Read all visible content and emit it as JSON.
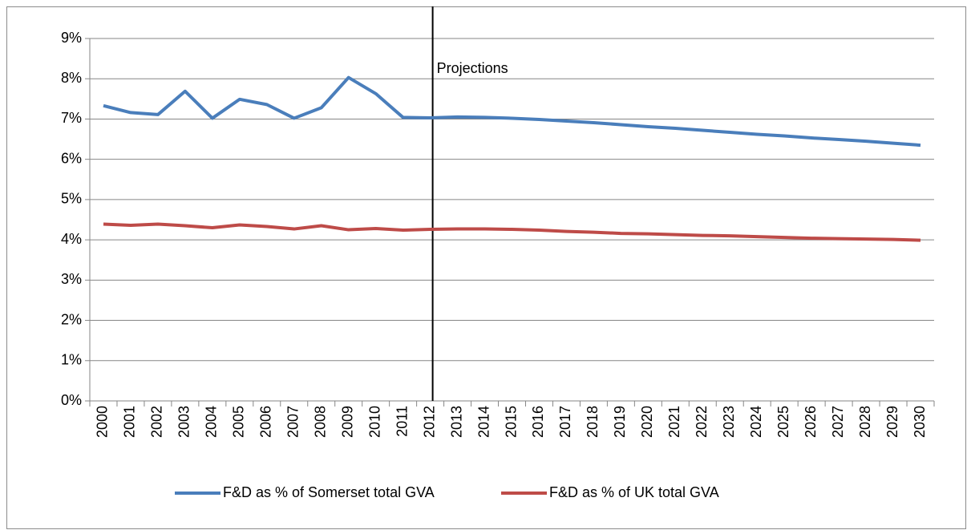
{
  "chart_data": {
    "type": "line",
    "categories": [
      "2000",
      "2001",
      "2002",
      "2003",
      "2004",
      "2005",
      "2006",
      "2007",
      "2008",
      "2009",
      "2010",
      "2011",
      "2012",
      "2013",
      "2014",
      "2015",
      "2016",
      "2017",
      "2018",
      "2019",
      "2020",
      "2021",
      "2022",
      "2023",
      "2024",
      "2025",
      "2026",
      "2027",
      "2028",
      "2029",
      "2030"
    ],
    "series": [
      {
        "name": "F&D as % of Somerset total GVA",
        "color": "#4a7ebb",
        "values": [
          7.33,
          7.16,
          7.11,
          7.69,
          7.02,
          7.49,
          7.36,
          7.02,
          7.28,
          8.03,
          7.63,
          7.04,
          7.03,
          7.05,
          7.04,
          7.02,
          6.99,
          6.95,
          6.91,
          6.86,
          6.81,
          6.77,
          6.72,
          6.67,
          6.62,
          6.58,
          6.53,
          6.49,
          6.45,
          6.4,
          6.35
        ]
      },
      {
        "name": "F&D as % of UK total GVA",
        "color": "#be4b48",
        "values": [
          4.39,
          4.36,
          4.39,
          4.35,
          4.3,
          4.37,
          4.33,
          4.27,
          4.35,
          4.25,
          4.28,
          4.24,
          4.26,
          4.27,
          4.27,
          4.26,
          4.24,
          4.21,
          4.19,
          4.16,
          4.15,
          4.13,
          4.11,
          4.1,
          4.08,
          4.06,
          4.04,
          4.03,
          4.02,
          4.01,
          3.99
        ]
      }
    ],
    "ylim": [
      0,
      9
    ],
    "yticks": [
      {
        "value": 0,
        "label": "0%"
      },
      {
        "value": 1,
        "label": "1%"
      },
      {
        "value": 2,
        "label": "2%"
      },
      {
        "value": 3,
        "label": "3%"
      },
      {
        "value": 4,
        "label": "4%"
      },
      {
        "value": 5,
        "label": "5%"
      },
      {
        "value": 6,
        "label": "6%"
      },
      {
        "value": 7,
        "label": "7%"
      },
      {
        "value": 8,
        "label": "8%"
      },
      {
        "value": 9,
        "label": "9%"
      }
    ],
    "grid": true,
    "annotations": [
      {
        "text": "Projections",
        "x": "2012"
      }
    ],
    "legend": "bottom"
  }
}
